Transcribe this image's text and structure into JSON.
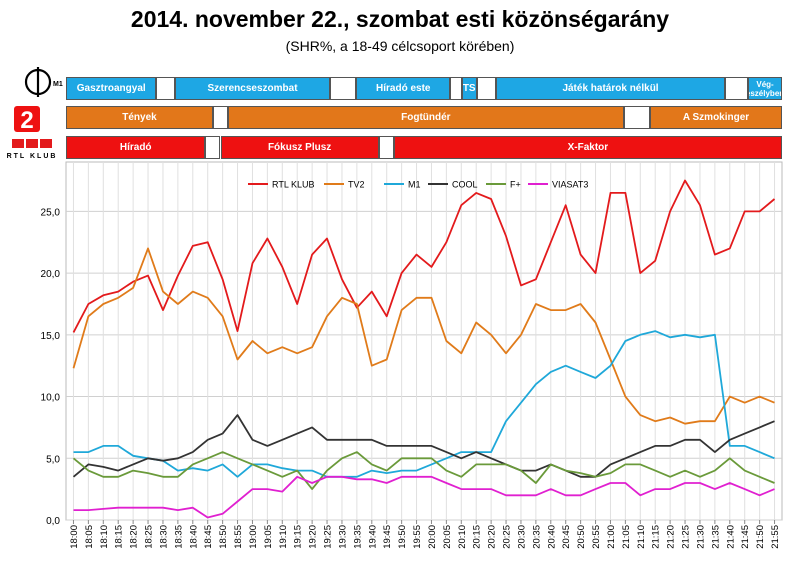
{
  "title": "2014. november 22., szombat esti közönségarány",
  "subtitle": "(SHR%, a 18-49 célcsoport körében)",
  "channels": {
    "m1": {
      "color": "#1ea7e4",
      "logo_text": "M1",
      "programs": [
        {
          "label": "Gasztroangyal",
          "start": 0,
          "end": 24
        },
        {
          "label": "",
          "start": 24,
          "end": 29
        },
        {
          "label": "Szerencseszombat",
          "start": 29,
          "end": 70
        },
        {
          "label": "",
          "start": 70,
          "end": 77
        },
        {
          "label": "Híradó este",
          "start": 77,
          "end": 102
        },
        {
          "label": "",
          "start": 102,
          "end": 105
        },
        {
          "label": "TS",
          "start": 105,
          "end": 109
        },
        {
          "label": "",
          "start": 109,
          "end": 114
        },
        {
          "label": "Játék határok nélkül",
          "start": 114,
          "end": 175
        },
        {
          "label": "",
          "start": 175,
          "end": 181
        },
        {
          "label": "Vég- eszélyben",
          "start": 181,
          "end": 190
        }
      ]
    },
    "tv2": {
      "color": "#e2771a",
      "logo_text": "2",
      "programs": [
        {
          "label": "Tények",
          "start": 0,
          "end": 39
        },
        {
          "label": "",
          "start": 39,
          "end": 43
        },
        {
          "label": "Fogtündér",
          "start": 43,
          "end": 148
        },
        {
          "label": "",
          "start": 148,
          "end": 155
        },
        {
          "label": "A Szmokinger",
          "start": 155,
          "end": 190
        }
      ]
    },
    "rtl": {
      "color": "#ee1111",
      "logo_text": "RTL KLUB",
      "programs": [
        {
          "label": "Híradó",
          "start": 0,
          "end": 37
        },
        {
          "label": "",
          "start": 37,
          "end": 41
        },
        {
          "label": "Fókusz Plusz",
          "start": 41,
          "end": 83
        },
        {
          "label": "",
          "start": 83,
          "end": 87
        },
        {
          "label": "X-Faktor",
          "start": 87,
          "end": 190
        }
      ]
    }
  },
  "chart_data": {
    "type": "line",
    "title": "",
    "xlabel": "",
    "ylabel": "",
    "ylim": [
      0,
      29
    ],
    "yticks": [
      "0,0",
      "5,0",
      "10,0",
      "15,0",
      "20,0",
      "25,0"
    ],
    "x": [
      "18:00",
      "18:05",
      "18:10",
      "18:15",
      "18:20",
      "18:25",
      "18:30",
      "18:35",
      "18:40",
      "18:45",
      "18:50",
      "18:55",
      "19:00",
      "19:05",
      "19:10",
      "19:15",
      "19:20",
      "19:25",
      "19:30",
      "19:35",
      "19:40",
      "19:45",
      "19:50",
      "19:55",
      "20:00",
      "20:05",
      "20:10",
      "20:15",
      "20:20",
      "20:25",
      "20:30",
      "20:35",
      "20:40",
      "20:45",
      "20:50",
      "20:55",
      "21:00",
      "21:05",
      "21:10",
      "21:15",
      "21:20",
      "21:25",
      "21:30",
      "21:35",
      "21:40",
      "21:45",
      "21:50",
      "21:55"
    ],
    "grid": true,
    "legend_position": "top",
    "series": [
      {
        "name": "RTL KLUB",
        "color": "#e31a1c",
        "values": [
          15.2,
          17.5,
          18.2,
          18.5,
          19.3,
          19.8,
          17.0,
          19.8,
          22.2,
          22.5,
          19.5,
          15.3,
          20.8,
          22.8,
          20.5,
          17.5,
          21.5,
          22.8,
          19.5,
          17.2,
          18.5,
          16.5,
          20.0,
          21.5,
          20.5,
          22.5,
          25.5,
          26.5,
          26.0,
          23.0,
          19.0,
          19.5,
          22.5,
          25.5,
          21.5,
          20.0,
          26.5,
          26.5,
          20.0,
          21.0,
          25.0,
          27.5,
          25.5,
          21.5,
          22.0,
          25.0,
          25.0,
          26.0
        ]
      },
      {
        "name": "TV2",
        "color": "#e07b1a",
        "values": [
          12.3,
          16.5,
          17.5,
          18.0,
          18.8,
          22.0,
          18.5,
          17.5,
          18.5,
          18.0,
          16.5,
          13.0,
          14.5,
          13.5,
          14.0,
          13.5,
          14.0,
          16.5,
          18.0,
          17.5,
          12.5,
          13.0,
          17.0,
          18.0,
          18.0,
          14.5,
          13.5,
          16.0,
          15.0,
          13.5,
          15.0,
          17.5,
          17.0,
          17.0,
          17.5,
          16.0,
          13.0,
          10.0,
          8.5,
          8.0,
          8.3,
          7.8,
          8.0,
          8.0,
          10.0,
          9.5,
          10.0,
          9.5
        ]
      },
      {
        "name": "M1",
        "color": "#1fa8d9",
        "values": [
          5.5,
          5.5,
          6.0,
          6.0,
          5.2,
          5.0,
          4.8,
          4.0,
          4.2,
          4.0,
          4.5,
          3.5,
          4.5,
          4.5,
          4.2,
          4.0,
          4.0,
          3.5,
          3.5,
          3.5,
          4.0,
          3.8,
          4.0,
          4.0,
          4.5,
          5.0,
          5.5,
          5.5,
          5.5,
          8.0,
          9.5,
          11.0,
          12.0,
          12.5,
          12.0,
          11.5,
          12.5,
          14.5,
          15.0,
          15.3,
          14.8,
          15.0,
          14.8,
          15.0,
          6.0,
          6.0,
          5.5,
          5.0
        ]
      },
      {
        "name": "COOL",
        "color": "#333333",
        "values": [
          3.5,
          4.5,
          4.3,
          4.0,
          4.5,
          5.0,
          4.8,
          5.0,
          5.5,
          6.5,
          7.0,
          8.5,
          6.5,
          6.0,
          6.5,
          7.0,
          7.5,
          6.5,
          6.5,
          6.5,
          6.5,
          6.0,
          6.0,
          6.0,
          6.0,
          5.5,
          5.0,
          5.5,
          5.0,
          4.5,
          4.0,
          4.0,
          4.5,
          4.0,
          3.5,
          3.5,
          4.5,
          5.0,
          5.5,
          6.0,
          6.0,
          6.5,
          6.5,
          5.5,
          6.5,
          7.0,
          7.5,
          8.0
        ]
      },
      {
        "name": "F+",
        "color": "#6a9a3a",
        "values": [
          5.0,
          4.0,
          3.5,
          3.5,
          4.0,
          3.8,
          3.5,
          3.5,
          4.5,
          5.0,
          5.5,
          5.0,
          4.5,
          4.0,
          3.5,
          4.0,
          2.5,
          4.0,
          5.0,
          5.5,
          4.5,
          4.0,
          5.0,
          5.0,
          5.0,
          4.0,
          3.5,
          4.5,
          4.5,
          4.5,
          4.0,
          3.0,
          4.5,
          4.0,
          3.8,
          3.5,
          3.8,
          4.5,
          4.5,
          4.0,
          3.5,
          4.0,
          3.5,
          4.0,
          5.0,
          4.0,
          3.5,
          3.0
        ]
      },
      {
        "name": "VIASAT3",
        "color": "#e020d0",
        "values": [
          0.8,
          0.8,
          0.9,
          1.0,
          1.0,
          1.0,
          1.0,
          0.8,
          1.0,
          0.2,
          0.5,
          1.5,
          2.5,
          2.5,
          2.3,
          3.5,
          3.0,
          3.5,
          3.5,
          3.3,
          3.3,
          3.0,
          3.5,
          3.5,
          3.5,
          3.0,
          2.5,
          2.5,
          2.5,
          2.0,
          2.0,
          2.0,
          2.5,
          2.0,
          2.0,
          2.5,
          3.0,
          3.0,
          2.0,
          2.5,
          2.5,
          3.0,
          3.0,
          2.5,
          3.0,
          2.5,
          2.0,
          2.5
        ]
      }
    ]
  }
}
